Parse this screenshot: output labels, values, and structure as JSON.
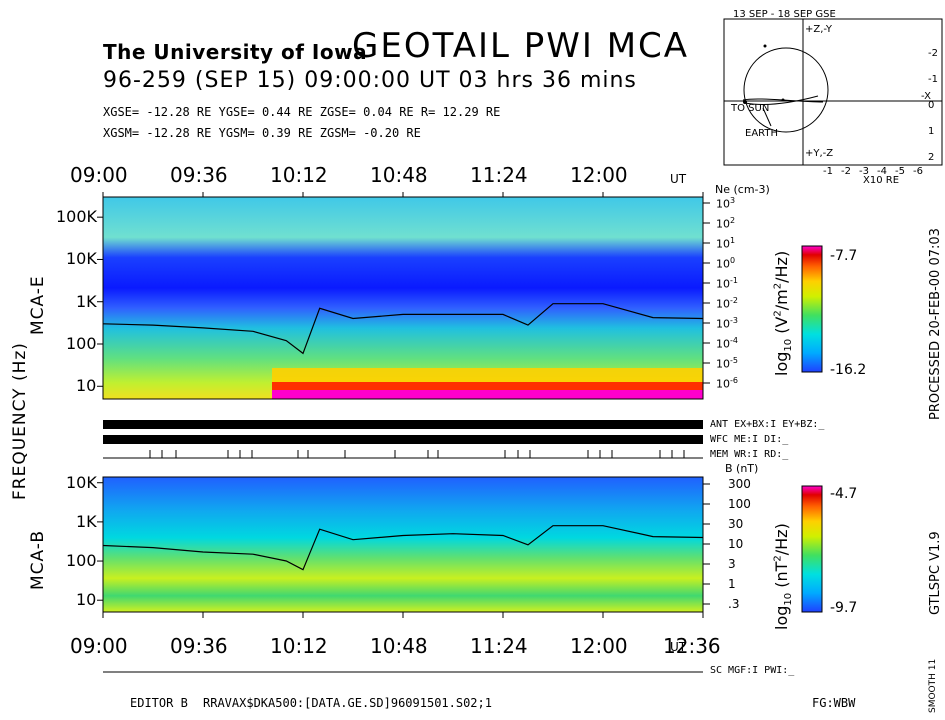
{
  "header": {
    "institution": "The University of Iowa",
    "title": "GEOTAIL  PWI  MCA",
    "date_line": "96-259  (SEP 15)  09:00:00 UT    03 hrs   36 mins",
    "gse_line": "XGSE= -12.28 RE   YGSE=   0.44 RE   ZGSE=   0.04 RE   R= 12.29 RE",
    "gsm_line": "XGSM= -12.28 RE   YGSM=   0.39 RE   ZGSM=  -0.20 RE"
  },
  "orbit": {
    "title": "13 SEP - 18 SEP  GSE",
    "to_sun": "TO SUN",
    "earth": "EARTH",
    "x_ticks": [
      "-1",
      "-2",
      "-3",
      "-4",
      "-5",
      "-6"
    ],
    "x_unit": "X10 RE",
    "right_ticks": [
      "-2",
      "-1",
      "0",
      "1",
      "2"
    ],
    "top_axis": "+Z,-Y",
    "bottom_axis": "+Y,-Z",
    "x_axis": "-X"
  },
  "axes": {
    "time_labels_top": [
      "09:00",
      "09:36",
      "10:12",
      "10:48",
      "11:24",
      "12:00"
    ],
    "time_labels_bottom": [
      "09:00",
      "09:36",
      "10:12",
      "10:48",
      "11:24",
      "12:00",
      "12:36"
    ],
    "ut": "UT",
    "freq_label": "FREQUENCY (Hz)",
    "mca_e_label": "MCA-E",
    "mca_b_label": "MCA-B",
    "e_freq_ticks": [
      "100K",
      "10K",
      "1K",
      "100",
      "10"
    ],
    "b_freq_ticks": [
      "10K",
      "1K",
      "100",
      "10"
    ],
    "ne_label": "Ne (cm-3)",
    "ne_ticks": [
      "10",
      "10",
      "10",
      "10",
      "10",
      "10",
      "10",
      "10",
      "10",
      "10"
    ],
    "ne_exps": [
      "3",
      "2",
      "1",
      "0",
      "-1",
      "-2",
      "-3",
      "-4",
      "-5",
      "-6"
    ],
    "b_label": "B (nT)",
    "b_ticks": [
      "300",
      "100",
      "30",
      "10",
      "3",
      "1",
      ".3"
    ]
  },
  "colorbars": {
    "e_max": "-7.7",
    "e_min": "-16.2",
    "e_unit": "log10 (V2/m2/Hz)",
    "e_unit_log": "log",
    "e_unit_sub": "10",
    "e_unit_body": "(V",
    "e_unit_sup1": "2",
    "e_unit_mid": "/m",
    "e_unit_sup2": "2",
    "e_unit_end": "/Hz)",
    "b_max": "-4.7",
    "b_min": "-9.7",
    "b_unit_log": "log",
    "b_unit_sub": "10",
    "b_unit_body": "(nT",
    "b_unit_sup": "2",
    "b_unit_end": "/Hz)",
    "colors": [
      "#2040ff",
      "#00aaff",
      "#00e0e0",
      "#40e060",
      "#d0f000",
      "#ffd000",
      "#ff6000",
      "#e00000",
      "#ff00cc"
    ]
  },
  "status": {
    "ant": "ANT EX+BX:I  EY+BZ:_",
    "wfc": "WFC ME:I     DI:_",
    "mem": "MEM WR:I     RD:_",
    "sc": "SC MGF:I   PWI:_"
  },
  "right_side": {
    "processed": "PROCESSED 20-FEB-00  07:03",
    "version": "GTLSPC   V1.9",
    "smooth": "SMOOTH 11"
  },
  "footer": {
    "editor": "EDITOR B",
    "path": "RRAVAX$DKA500:[DATA.GE.SD]96091501.S02;1",
    "fg": "FG:WBW"
  },
  "chart_data": [
    {
      "type": "heatmap",
      "title": "MCA-E",
      "ylabel": "FREQUENCY (Hz)",
      "x_range": [
        "09:00",
        "12:36"
      ],
      "y_scale": "log",
      "y_range_hz": [
        5,
        300000
      ],
      "colorbar_range": [
        -16.2,
        -7.7
      ],
      "overlay_line": {
        "name": "Ne (cm-3)",
        "x": [
          "09:00",
          "09:18",
          "09:36",
          "09:54",
          "10:06",
          "10:12",
          "10:18",
          "10:30",
          "10:48",
          "11:06",
          "11:24",
          "11:33",
          "11:42",
          "12:00",
          "12:18",
          "12:36"
        ],
        "values_hz": [
          300,
          280,
          240,
          200,
          120,
          60,
          700,
          400,
          500,
          500,
          500,
          280,
          900,
          900,
          420,
          400
        ]
      }
    },
    {
      "type": "heatmap",
      "title": "MCA-B",
      "ylabel": "FREQUENCY (Hz)",
      "x_range": [
        "09:00",
        "12:36"
      ],
      "y_scale": "log",
      "y_range_hz": [
        5,
        14000
      ],
      "colorbar_range": [
        -9.7,
        -4.7
      ],
      "overlay_line": {
        "name": "B (nT)",
        "x": [
          "09:00",
          "09:18",
          "09:36",
          "09:54",
          "10:06",
          "10:12",
          "10:18",
          "10:30",
          "10:48",
          "11:06",
          "11:24",
          "11:33",
          "11:42",
          "12:00",
          "12:18",
          "12:36"
        ],
        "values_hz": [
          250,
          220,
          170,
          150,
          100,
          60,
          650,
          350,
          450,
          500,
          450,
          260,
          800,
          800,
          420,
          400
        ]
      }
    }
  ]
}
